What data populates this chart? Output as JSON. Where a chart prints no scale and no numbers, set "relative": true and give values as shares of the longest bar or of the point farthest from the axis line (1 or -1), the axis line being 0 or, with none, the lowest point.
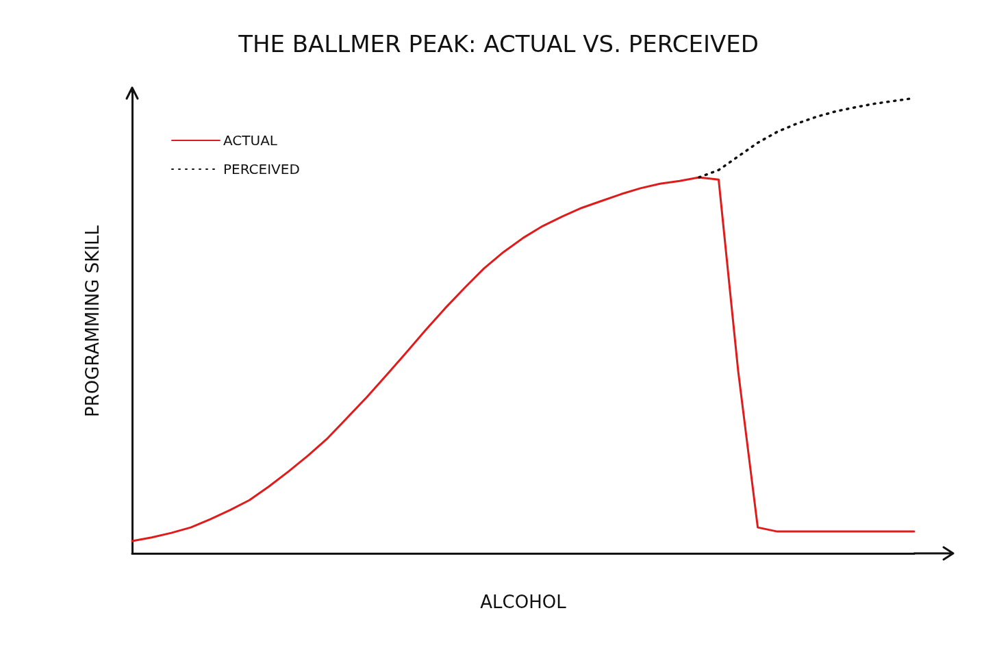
{
  "chart_data": {
    "type": "line",
    "title": "THE BALLMER PEAK: ACTUAL VS. PERCEIVED",
    "xlabel": "ALCOHOL",
    "ylabel": "PROGRAMMING SKILL",
    "relative": true,
    "legend": "top left",
    "marker": "none",
    "grid": false,
    "categories": [
      null,
      null,
      null,
      null,
      null,
      null,
      null,
      null,
      null,
      null,
      null,
      null,
      null,
      null,
      null,
      null,
      null,
      null,
      null,
      null,
      null,
      null,
      null,
      null,
      null,
      null,
      null,
      null,
      null,
      null,
      null,
      null,
      null,
      null,
      null,
      null,
      null,
      null,
      null,
      null,
      null
    ],
    "series": [
      {
        "name": "ACTUAL",
        "color": "#e01b1b",
        "line_style": "solid",
        "values": [
          0.027,
          0.035,
          0.045,
          0.057,
          0.075,
          0.095,
          0.117,
          0.147,
          0.18,
          0.215,
          0.253,
          0.298,
          0.343,
          0.391,
          0.44,
          0.49,
          0.538,
          0.583,
          0.626,
          0.662,
          0.693,
          0.719,
          0.74,
          0.759,
          0.774,
          0.789,
          0.802,
          0.812,
          0.818,
          0.826,
          0.821,
          0.4,
          0.057,
          0.048,
          0.048,
          0.048,
          0.048,
          0.048,
          0.048,
          0.048,
          0.048
        ]
      },
      {
        "name": "PERCEIVED",
        "color": "#111111",
        "line_style": "dotted",
        "values": [
          null,
          null,
          null,
          null,
          null,
          null,
          null,
          null,
          null,
          null,
          null,
          null,
          null,
          null,
          null,
          null,
          null,
          null,
          null,
          null,
          null,
          null,
          null,
          null,
          null,
          null,
          null,
          null,
          null,
          0.826,
          0.842,
          0.872,
          0.902,
          0.926,
          0.944,
          0.959,
          0.971,
          0.98,
          0.988,
          0.994,
          1
        ]
      }
    ]
  }
}
